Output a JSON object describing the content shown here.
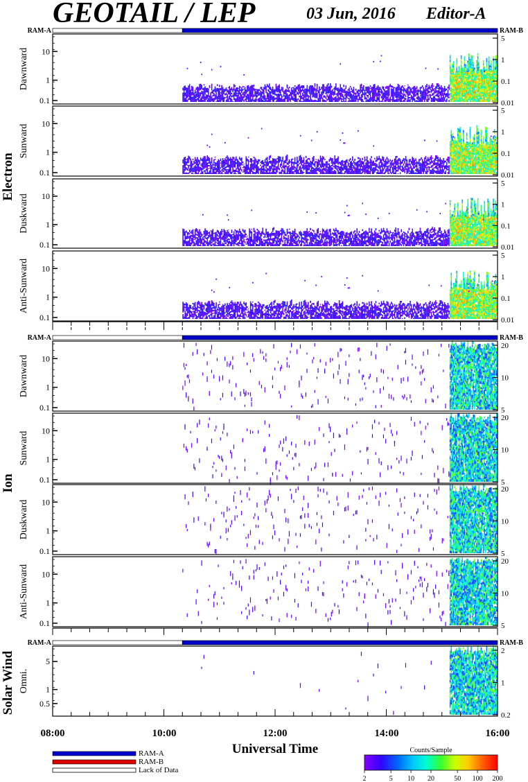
{
  "header": {
    "instrument": "GEOTAIL / LEP",
    "date": "03 Jun, 2016",
    "editor": "Editor-A"
  },
  "chart_data": {
    "type": "heatmap",
    "x_axis": {
      "title": "Universal Time",
      "range": [
        "08:00",
        "16:00"
      ],
      "tick_labels": [
        "08:00",
        "10:00",
        "12:00",
        "14:00",
        "16:00"
      ],
      "minor_tick_interval_min": 20,
      "data_start": "10:20"
    },
    "groups": [
      {
        "name": "Electron",
        "ram_labels": {
          "left": "RAM-A",
          "right": "RAM-B"
        },
        "panels": [
          {
            "label": "Dawnward",
            "y_ticks": [
              "10",
              "1",
              "0.1"
            ],
            "y_right_ticks": [
              "5",
              "1",
              "0.1",
              "0.01"
            ]
          },
          {
            "label": "Sunward",
            "y_ticks": [
              "10",
              "1",
              "0.1"
            ],
            "y_right_ticks": [
              "5",
              "1",
              "0.1",
              "0.01"
            ]
          },
          {
            "label": "Duskward",
            "y_ticks": [
              "10",
              "1",
              "0.1"
            ],
            "y_right_ticks": [
              "5",
              "1",
              "0.1",
              "0.01"
            ]
          },
          {
            "label": "Anti-Sunward",
            "y_ticks": [
              "10",
              "1",
              "0.1"
            ],
            "y_right_ticks": [
              "5",
              "1",
              "0.1",
              "0.01"
            ]
          }
        ]
      },
      {
        "name": "Ion",
        "ram_labels": {
          "left": "RAM-A",
          "right": "RAM-B"
        },
        "panels": [
          {
            "label": "Dawnward",
            "y_ticks": [
              "10",
              "1",
              "0.1"
            ],
            "y_right_ticks": [
              "20",
              "10",
              "5"
            ]
          },
          {
            "label": "Sunward",
            "y_ticks": [
              "10",
              "1",
              "0.1"
            ],
            "y_right_ticks": [
              "20",
              "10",
              "5"
            ]
          },
          {
            "label": "Duskward",
            "y_ticks": [
              "10",
              "1",
              "0.1"
            ],
            "y_right_ticks": [
              "20",
              "10",
              "5"
            ]
          },
          {
            "label": "Anti-Sunward",
            "y_ticks": [
              "10",
              "1",
              "0.1"
            ],
            "y_right_ticks": [
              "20",
              "10",
              "5"
            ]
          }
        ]
      },
      {
        "name": "Solar Wind",
        "ram_labels": {
          "left": "RAM-A",
          "right": "RAM-B"
        },
        "panels": [
          {
            "label": "Omni.",
            "y_ticks": [
              "5",
              "1",
              "0.5"
            ],
            "y_right_ticks": [
              "2",
              "1",
              "0.2"
            ]
          }
        ]
      }
    ],
    "legend": [
      {
        "label": "RAM-A",
        "color": "#0000cc"
      },
      {
        "label": "RAM-B",
        "color": "#dd0000"
      },
      {
        "label": "Lack of Data",
        "color": "#ffffff"
      }
    ],
    "colorbar": {
      "title": "Counts/Sample",
      "tick_labels": [
        "2",
        "5",
        "10",
        "20",
        "50",
        "100",
        "200"
      ],
      "scale": "log",
      "range": [
        2,
        200
      ]
    }
  }
}
